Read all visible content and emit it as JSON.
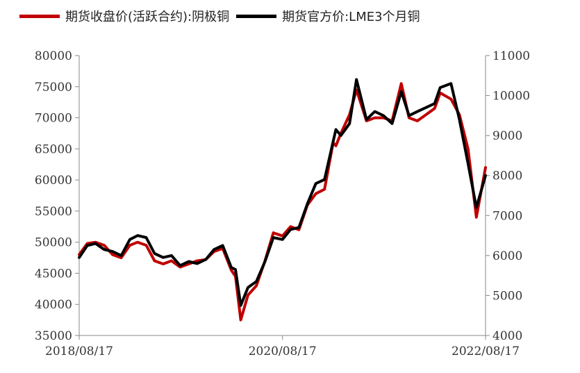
{
  "legend": {
    "series1": "期货收盘价(活跃合约):阴极铜",
    "series2": "期货官方价:LME3个月铜"
  },
  "colors": {
    "series1": "#c00000",
    "series2": "#000000"
  },
  "chart_data": {
    "type": "line",
    "title": "",
    "xlabel": "",
    "ylabel": "",
    "x_ticks": [
      "2018/08/17",
      "2020/08/17",
      "2022/08/17"
    ],
    "x_range": [
      "2018/08/17",
      "2022/08/17"
    ],
    "left_axis": {
      "range": [
        35000,
        80000
      ],
      "ticks": [
        35000,
        40000,
        45000,
        50000,
        55000,
        60000,
        65000,
        70000,
        75000,
        80000
      ]
    },
    "right_axis": {
      "range": [
        4000,
        11000
      ],
      "ticks": [
        4000,
        5000,
        6000,
        7000,
        8000,
        9000,
        10000,
        11000
      ]
    },
    "legend_position": "top",
    "grid": false,
    "series": [
      {
        "name": "期货收盘价(活跃合约):阴极铜",
        "axis": "left",
        "x": [
          "2018/08/17",
          "2018/09/15",
          "2018/10/15",
          "2018/11/15",
          "2018/12/15",
          "2019/01/15",
          "2019/02/15",
          "2019/03/15",
          "2019/04/15",
          "2019/05/15",
          "2019/06/15",
          "2019/07/15",
          "2019/08/15",
          "2019/09/15",
          "2019/10/15",
          "2019/11/15",
          "2019/12/15",
          "2020/01/15",
          "2020/02/15",
          "2020/03/01",
          "2020/03/20",
          "2020/04/15",
          "2020/05/15",
          "2020/06/15",
          "2020/07/15",
          "2020/08/17",
          "2020/09/15",
          "2020/10/15",
          "2020/11/15",
          "2020/12/15",
          "2021/01/15",
          "2021/02/15",
          "2021/02/25",
          "2021/03/15",
          "2021/04/15",
          "2021/05/10",
          "2021/06/15",
          "2021/07/15",
          "2021/08/15",
          "2021/09/15",
          "2021/10/18",
          "2021/11/15",
          "2021/12/15",
          "2022/01/15",
          "2022/02/15",
          "2022/03/07",
          "2022/04/15",
          "2022/05/15",
          "2022/06/15",
          "2022/07/15",
          "2022/08/17"
        ],
        "y": [
          48000,
          49800,
          50000,
          49500,
          48000,
          47500,
          49500,
          50000,
          49500,
          47000,
          46500,
          47000,
          46000,
          46500,
          47000,
          47200,
          48500,
          49000,
          45500,
          44500,
          37500,
          41500,
          43000,
          47000,
          51500,
          51000,
          52500,
          52000,
          56000,
          57800,
          58500,
          66000,
          65500,
          67500,
          70500,
          74500,
          69500,
          70000,
          70000,
          69500,
          75500,
          70000,
          69500,
          70500,
          71500,
          74000,
          73000,
          70500,
          65000,
          54000,
          62000
        ]
      },
      {
        "name": "期货官方价:LME3个月铜",
        "axis": "right",
        "x": [
          "2018/08/17",
          "2018/09/15",
          "2018/10/15",
          "2018/11/15",
          "2018/12/15",
          "2019/01/15",
          "2019/02/15",
          "2019/03/15",
          "2019/04/15",
          "2019/05/15",
          "2019/06/15",
          "2019/07/15",
          "2019/08/15",
          "2019/09/15",
          "2019/10/15",
          "2019/11/15",
          "2019/12/15",
          "2020/01/15",
          "2020/02/15",
          "2020/03/01",
          "2020/03/20",
          "2020/04/15",
          "2020/05/15",
          "2020/06/15",
          "2020/07/15",
          "2020/08/17",
          "2020/09/15",
          "2020/10/15",
          "2020/11/15",
          "2020/12/15",
          "2021/01/15",
          "2021/02/15",
          "2021/02/25",
          "2021/03/15",
          "2021/04/15",
          "2021/05/10",
          "2021/06/15",
          "2021/07/15",
          "2021/08/15",
          "2021/09/15",
          "2021/10/18",
          "2021/11/15",
          "2021/12/15",
          "2022/01/15",
          "2022/02/15",
          "2022/03/07",
          "2022/04/15",
          "2022/05/15",
          "2022/06/15",
          "2022/07/15",
          "2022/08/17"
        ],
        "y": [
          5950,
          6250,
          6300,
          6150,
          6100,
          6000,
          6400,
          6500,
          6450,
          6050,
          5950,
          6000,
          5750,
          5850,
          5800,
          5900,
          6150,
          6250,
          5700,
          5650,
          4750,
          5200,
          5350,
          5850,
          6450,
          6400,
          6650,
          6700,
          7300,
          7800,
          7900,
          8850,
          9150,
          9000,
          9300,
          10400,
          9400,
          9600,
          9500,
          9300,
          10100,
          9500,
          9600,
          9700,
          9800,
          10200,
          10300,
          9400,
          8300,
          7200,
          8000
        ]
      }
    ]
  }
}
